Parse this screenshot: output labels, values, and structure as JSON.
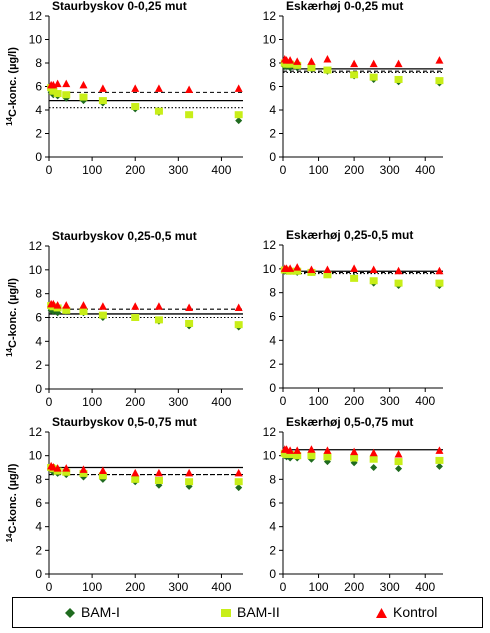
{
  "chart_data": [
    {
      "type": "scatter",
      "title": "Staurbyskov 0-0,25 mut",
      "ylabel": "14C-konc. (µg/l)",
      "xlim": [
        0,
        450
      ],
      "ylim": [
        0,
        12
      ],
      "x_ticks": [
        0,
        100,
        200,
        300,
        400
      ],
      "y_ticks": [
        0,
        2,
        4,
        6,
        8,
        10,
        12
      ],
      "series": [
        {
          "name": "BAM-I",
          "x": [
            5,
            10,
            20,
            40,
            80,
            125,
            200,
            255,
            325,
            440
          ],
          "y": [
            5.5,
            5.3,
            5.2,
            5.0,
            4.8,
            4.6,
            4.1,
            3.8,
            3.6,
            3.1
          ]
        },
        {
          "name": "BAM-II",
          "x": [
            5,
            10,
            20,
            40,
            80,
            125,
            200,
            255,
            325,
            440
          ],
          "y": [
            5.9,
            5.6,
            5.4,
            5.3,
            5.1,
            4.8,
            4.3,
            3.9,
            3.6,
            3.6
          ]
        },
        {
          "name": "Kontrol",
          "x": [
            5,
            10,
            20,
            40,
            80,
            125,
            200,
            255,
            325,
            440
          ],
          "y": [
            6.1,
            6.1,
            6.2,
            6.2,
            6.1,
            5.8,
            5.8,
            5.8,
            5.7,
            5.8
          ]
        }
      ],
      "ref_lines": [
        {
          "style": "solid",
          "y": 4.8
        },
        {
          "style": "dashed",
          "y": 5.5
        },
        {
          "style": "dotted",
          "y": 4.2
        }
      ]
    },
    {
      "type": "scatter",
      "title": "Eskærhøj 0-0,25 mut",
      "ylabel": "",
      "xlim": [
        0,
        450
      ],
      "ylim": [
        0,
        12
      ],
      "x_ticks": [
        0,
        100,
        200,
        300,
        400
      ],
      "y_ticks": [
        0,
        2,
        4,
        6,
        8,
        10,
        12
      ],
      "series": [
        {
          "name": "BAM-I",
          "x": [
            5,
            10,
            20,
            40,
            80,
            125,
            200,
            255,
            325,
            440
          ],
          "y": [
            7.7,
            7.7,
            7.6,
            7.6,
            7.5,
            7.3,
            6.9,
            6.6,
            6.4,
            6.3
          ]
        },
        {
          "name": "BAM-II",
          "x": [
            5,
            10,
            20,
            40,
            80,
            125,
            200,
            255,
            325,
            440
          ],
          "y": [
            8.0,
            7.9,
            7.9,
            7.8,
            7.6,
            7.4,
            7.0,
            6.8,
            6.6,
            6.5
          ]
        },
        {
          "name": "Kontrol",
          "x": [
            5,
            10,
            20,
            40,
            80,
            125,
            200,
            255,
            325,
            440
          ],
          "y": [
            8.3,
            8.2,
            8.2,
            8.1,
            8.1,
            8.3,
            7.9,
            7.9,
            7.9,
            8.2
          ]
        }
      ],
      "ref_lines": [
        {
          "style": "solid",
          "y": 7.5
        },
        {
          "style": "dashed",
          "y": 7.3
        },
        {
          "style": "dotted",
          "y": 7.2
        }
      ]
    },
    {
      "type": "scatter",
      "title": "Staurbyskov 0,25-0,5 mut",
      "ylabel": "14C-konc. (µg/l)",
      "xlim": [
        0,
        450
      ],
      "ylim": [
        0,
        12
      ],
      "x_ticks": [
        0,
        100,
        200,
        300,
        400
      ],
      "y_ticks": [
        0,
        2,
        4,
        6,
        8,
        10,
        12
      ],
      "series": [
        {
          "name": "BAM-I",
          "x": [
            5,
            10,
            20,
            40,
            80,
            125,
            200,
            255,
            325,
            440
          ],
          "y": [
            6.6,
            6.5,
            6.4,
            6.5,
            6.4,
            6.0,
            6.0,
            5.7,
            5.3,
            5.2
          ]
        },
        {
          "name": "BAM-II",
          "x": [
            5,
            10,
            20,
            40,
            80,
            125,
            200,
            255,
            325,
            440
          ],
          "y": [
            7.0,
            6.9,
            6.8,
            6.6,
            6.5,
            6.2,
            6.0,
            5.8,
            5.5,
            5.4
          ]
        },
        {
          "name": "Kontrol",
          "x": [
            5,
            10,
            20,
            40,
            80,
            125,
            200,
            255,
            325,
            440
          ],
          "y": [
            7.1,
            7.1,
            7.0,
            7.0,
            7.0,
            6.9,
            6.9,
            6.9,
            6.8,
            6.8
          ]
        }
      ],
      "ref_lines": [
        {
          "style": "solid",
          "y": 6.3
        },
        {
          "style": "dashed",
          "y": 6.7
        },
        {
          "style": "dotted",
          "y": 6.0
        }
      ]
    },
    {
      "type": "scatter",
      "title": "Eskærhøj 0,25-0,5 mut",
      "ylabel": "",
      "xlim": [
        0,
        450
      ],
      "ylim": [
        0,
        12
      ],
      "x_ticks": [
        0,
        100,
        200,
        300,
        400
      ],
      "y_ticks": [
        0,
        2,
        4,
        6,
        8,
        10,
        12
      ],
      "series": [
        {
          "name": "BAM-I",
          "x": [
            5,
            10,
            20,
            40,
            80,
            125,
            200,
            255,
            325,
            440
          ],
          "y": [
            9.8,
            9.8,
            9.8,
            9.7,
            9.7,
            9.6,
            9.3,
            8.8,
            8.6,
            8.6
          ]
        },
        {
          "name": "BAM-II",
          "x": [
            5,
            10,
            20,
            40,
            80,
            125,
            200,
            255,
            325,
            440
          ],
          "y": [
            9.9,
            9.9,
            9.8,
            9.8,
            9.7,
            9.5,
            9.2,
            9.0,
            8.8,
            8.8
          ]
        },
        {
          "name": "Kontrol",
          "x": [
            5,
            10,
            20,
            40,
            80,
            125,
            200,
            255,
            325,
            440
          ],
          "y": [
            10.0,
            10.0,
            10.0,
            10.1,
            9.9,
            9.9,
            10.0,
            9.9,
            9.8,
            9.8
          ]
        }
      ],
      "ref_lines": [
        {
          "style": "solid",
          "y": 9.8
        },
        {
          "style": "dashed",
          "y": 9.7
        },
        {
          "style": "dotted",
          "y": 9.6
        }
      ]
    },
    {
      "type": "scatter",
      "title": "Staurbyskov 0,5-0,75 mut",
      "ylabel": "14C-konc. (µg/l)",
      "xlim": [
        0,
        450
      ],
      "ylim": [
        0,
        12
      ],
      "x_ticks": [
        0,
        100,
        200,
        300,
        400
      ],
      "y_ticks": [
        0,
        2,
        4,
        6,
        8,
        10,
        12
      ],
      "series": [
        {
          "name": "BAM-I",
          "x": [
            5,
            10,
            20,
            40,
            80,
            125,
            200,
            255,
            325,
            440
          ],
          "y": [
            8.8,
            8.6,
            8.5,
            8.4,
            8.2,
            8.0,
            7.8,
            7.5,
            7.4,
            7.3
          ]
        },
        {
          "name": "BAM-II",
          "x": [
            5,
            10,
            20,
            40,
            80,
            125,
            200,
            255,
            325,
            440
          ],
          "y": [
            9.0,
            8.9,
            8.7,
            8.6,
            8.5,
            8.3,
            8.0,
            7.9,
            7.8,
            7.8
          ]
        },
        {
          "name": "Kontrol",
          "x": [
            5,
            10,
            20,
            40,
            80,
            125,
            200,
            255,
            325,
            440
          ],
          "y": [
            9.1,
            9.0,
            8.9,
            8.9,
            8.8,
            8.7,
            8.5,
            8.5,
            8.5,
            8.5
          ]
        }
      ],
      "ref_lines": [
        {
          "style": "solid",
          "y": 9.0
        },
        {
          "style": "dashed",
          "y": 8.4
        },
        {
          "style": "dotted",
          "y": 8.4
        }
      ]
    },
    {
      "type": "scatter",
      "title": "Eskærhøj 0,5-0,75 mut",
      "ylabel": "",
      "xlim": [
        0,
        450
      ],
      "ylim": [
        0,
        12
      ],
      "x_ticks": [
        0,
        100,
        200,
        300,
        400
      ],
      "y_ticks": [
        0,
        2,
        4,
        6,
        8,
        10,
        12
      ],
      "series": [
        {
          "name": "BAM-I",
          "x": [
            5,
            10,
            20,
            40,
            80,
            125,
            200,
            255,
            325,
            440
          ],
          "y": [
            10.0,
            9.9,
            9.8,
            9.8,
            9.7,
            9.5,
            9.4,
            9.0,
            8.9,
            9.1
          ]
        },
        {
          "name": "BAM-II",
          "x": [
            5,
            10,
            20,
            40,
            80,
            125,
            200,
            255,
            325,
            440
          ],
          "y": [
            10.2,
            10.1,
            10.1,
            10.0,
            10.0,
            9.9,
            9.8,
            9.7,
            9.5,
            9.6
          ]
        },
        {
          "name": "Kontrol",
          "x": [
            5,
            10,
            20,
            40,
            80,
            125,
            200,
            255,
            325,
            440
          ],
          "y": [
            10.5,
            10.5,
            10.4,
            10.4,
            10.5,
            10.4,
            10.3,
            10.2,
            10.1,
            10.4
          ]
        }
      ],
      "ref_lines": [
        {
          "style": "solid",
          "y": 10.5
        }
      ]
    }
  ],
  "legend": [
    {
      "label": "BAM-I",
      "marker": "diamond",
      "color": "#1f6b1f"
    },
    {
      "label": "BAM-II",
      "marker": "square",
      "color": "#c8ee18"
    },
    {
      "label": "Kontrol",
      "marker": "triangle",
      "color": "#ff0000"
    }
  ]
}
